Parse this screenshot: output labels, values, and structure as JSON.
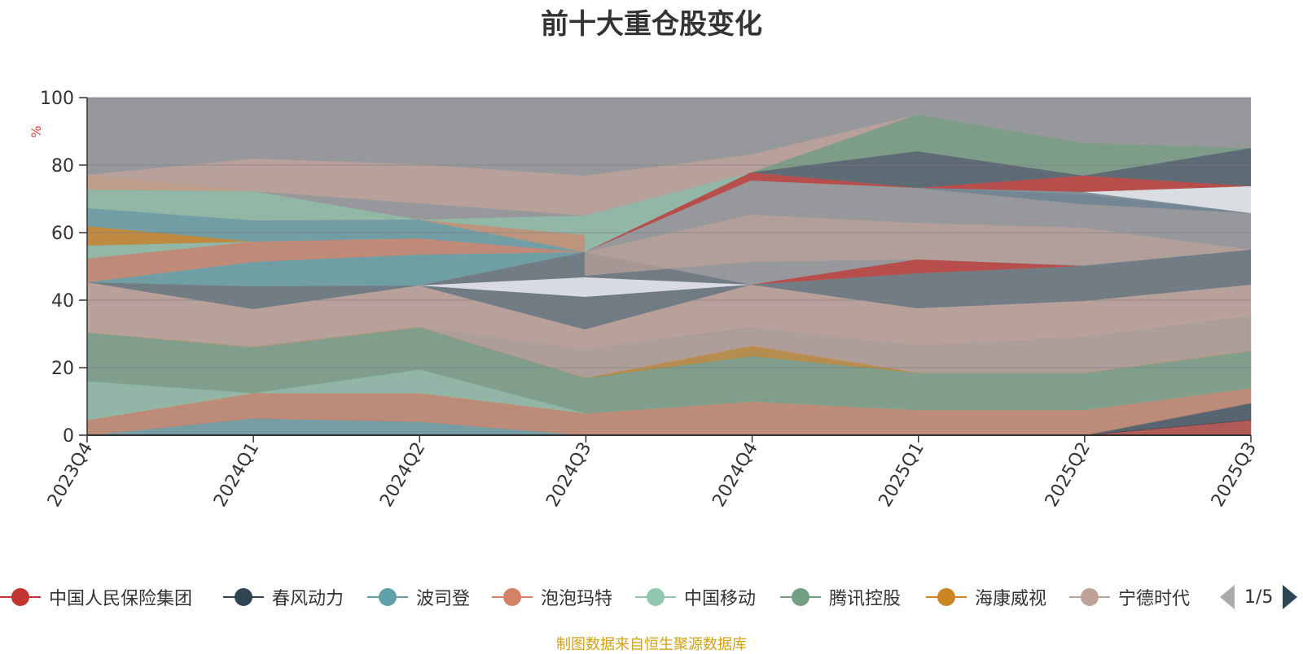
{
  "colors": {
    "background": "#97989b",
    "axis": "#333333",
    "unit_label": "#e53935",
    "source_note": "#d4a017"
  },
  "chart_data": {
    "type": "area",
    "stacked": true,
    "title": "前十大重仓股变化",
    "ylabel": "%",
    "ylim": [
      0,
      100
    ],
    "yticks": [
      0,
      20,
      40,
      60,
      80,
      100
    ],
    "categories": [
      "2023Q4",
      "2024Q1",
      "2024Q2",
      "2024Q3",
      "2024Q4",
      "2025Q1",
      "2025Q2",
      "2025Q3"
    ],
    "series": [
      {
        "name": "中国人民保险集团",
        "color": "#c23531",
        "values": [
          0,
          0,
          0,
          0,
          0,
          0,
          0,
          4.5
        ]
      },
      {
        "name": "春风动力",
        "color": "#2f4554",
        "values": [
          0,
          0,
          0,
          0,
          0,
          0,
          0,
          5
        ]
      },
      {
        "name": "波司登",
        "color": "#61a0a8",
        "values": [
          0,
          5,
          4,
          0,
          0,
          0,
          0,
          0
        ]
      },
      {
        "name": "泡泡玛特",
        "color": "#d48265",
        "values": [
          4.5,
          7.5,
          8.5,
          6.5,
          10,
          7.5,
          7.5,
          4.5
        ]
      },
      {
        "name": "中国移动",
        "color": "#91c7ae",
        "values": [
          11.5,
          0,
          7,
          0,
          0,
          0,
          0,
          0
        ]
      },
      {
        "name": "腾讯控股",
        "color": "#749f83",
        "values": [
          14.5,
          13.5,
          12.5,
          10.5,
          13.5,
          11,
          11,
          11
        ]
      },
      {
        "name": "海康威视",
        "color": "#ca8622",
        "values": [
          0,
          0,
          0,
          0,
          3,
          0,
          0,
          0
        ]
      },
      {
        "name": "宁德时代",
        "color": "#bda29a",
        "values": [
          0,
          0,
          0,
          8.5,
          5,
          8.5,
          11,
          11
        ]
      }
    ],
    "legend": {
      "page": "1/5"
    }
  },
  "source_note": "制图数据来自恒生聚源数据库"
}
